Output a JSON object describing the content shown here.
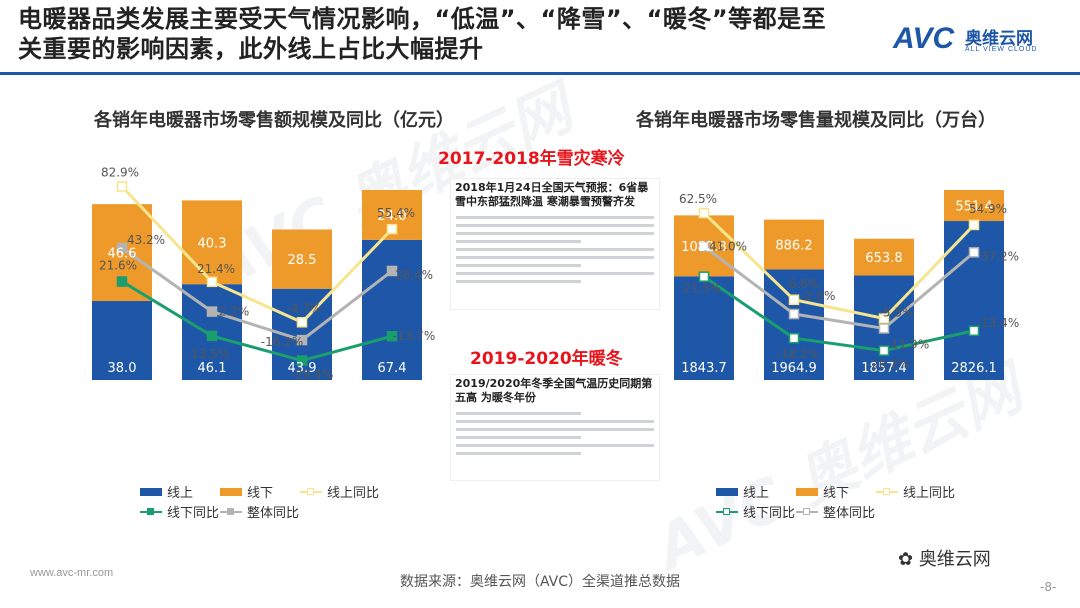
{
  "header": {
    "title": "电暖器品类发展主要受天气情况影响，“低温”、“降雪”、“暖冬”等都是至关重要的影响因素，此外线上占比大幅提升"
  },
  "logo": {
    "brand": "AVC",
    "cn": "奥维云网",
    "en": "ALL VIEW CLOUD"
  },
  "colors": {
    "online": "#1e57a8",
    "offline": "#ee9a2b",
    "online_yoy": "#f6e58d",
    "offline_yoy": "#1a9e6e",
    "total_yoy": "#b3b3b3",
    "accent_red": "#e8141b"
  },
  "charts": [
    {
      "title": "各销年电暖器市场零售额规模及同比（亿元）",
      "legend": {
        "online": "线上",
        "offline": "线下",
        "online_yoy": "线上同比",
        "offline_yoy": "线下同比",
        "total_yoy": "整体同比"
      }
    },
    {
      "title": "各销年电暖器市场零售量规模及同比（万台）",
      "legend": {
        "online": "线上",
        "offline": "线下",
        "online_yoy": "线上同比",
        "offline_yoy": "线下同比",
        "total_yoy": "整体同比"
      }
    }
  ],
  "chart_data": [
    {
      "type": "bar",
      "stacked": true,
      "title": "各销年电暖器市场零售额规模及同比（亿元）",
      "series": [
        {
          "name": "线上",
          "values": [
            38.0,
            46.1,
            43.9,
            67.4
          ]
        },
        {
          "name": "线下",
          "values": [
            46.6,
            40.3,
            28.5,
            24.0
          ]
        }
      ],
      "value_labels": {
        "online": [
          "38.0",
          "46.1",
          "43.9",
          "67.4"
        ],
        "offline": [
          "46.6",
          "40.3",
          "28.5",
          "24.0"
        ]
      },
      "lines": [
        {
          "name": "线上同比",
          "values": [
            82.9,
            21.4,
            -4.7,
            55.4
          ],
          "labels": [
            "82.9%",
            "21.4%",
            "-4.7%",
            "55.4%"
          ]
        },
        {
          "name": "线下同比",
          "values": [
            21.6,
            -13.5,
            -29.4,
            -13.7
          ],
          "labels": [
            "21.6%",
            "-13.5%",
            "-29.4%",
            "-13.7%"
          ]
        },
        {
          "name": "整体同比",
          "values": [
            43.2,
            2.2,
            -16.2,
            28.4
          ],
          "labels": [
            "43.2%",
            "2.2%",
            "-16.2%",
            "28.4%"
          ]
        }
      ]
    },
    {
      "type": "bar",
      "stacked": true,
      "title": "各销年电暖器市场零售量规模及同比（万台）",
      "series": [
        {
          "name": "线上",
          "values": [
            1843.7,
            1964.9,
            1857.4,
            2826.1
          ]
        },
        {
          "name": "线下",
          "values": [
            1082.8,
            886.2,
            653.8,
            551.4
          ]
        }
      ],
      "value_labels": {
        "online": [
          "1843.7",
          "1964.9",
          "1857.4",
          "2826.1"
        ],
        "offline": [
          "1082.8",
          "886.2",
          "653.8",
          "551.4"
        ]
      },
      "lines": [
        {
          "name": "线上同比",
          "values": [
            62.5,
            6.6,
            -5.5,
            54.9
          ],
          "labels": [
            "62.5%",
            "6.6%",
            "-5.5%",
            "54.9%"
          ]
        },
        {
          "name": "线下同比",
          "values": [
            21.5,
            -18.2,
            -26.2,
            -13.4
          ],
          "labels": [
            "21.5%",
            "-18.2%",
            "-26.2%",
            "-13.4%"
          ]
        },
        {
          "name": "整体同比",
          "values": [
            41.0,
            -2.6,
            -11.9,
            37.2
          ],
          "labels": [
            "41.0%",
            "-2.6%",
            "-11.9%",
            "37.2%"
          ]
        }
      ]
    }
  ],
  "middle": {
    "headline_top": "2017-2018年雪灾寒冷",
    "news1_title": "2018年1月24日全国天气预报：6省暴雪中东部猛烈降温 寒潮暴雪预警齐发",
    "headline_bottom": "2019-2020年暖冬",
    "news2_title": "2019/2020年冬季全国气温历史同期第五高 为暖冬年份"
  },
  "footer": {
    "source": "数据来源：奥维云网（AVC）全渠道推总数据",
    "website": "www.avc-mr.com",
    "wechat": "奥维云网",
    "page": "-8-"
  }
}
